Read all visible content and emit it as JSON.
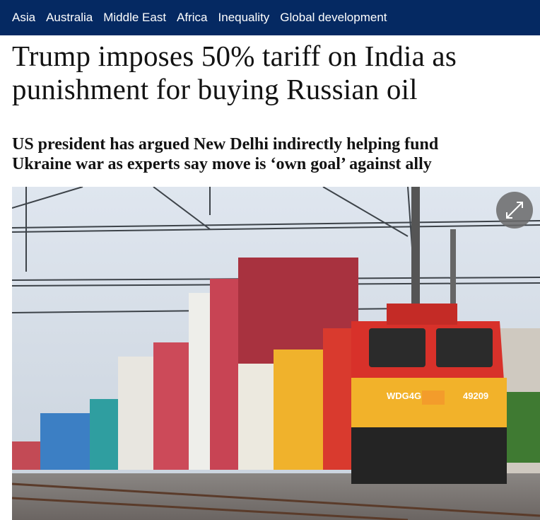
{
  "nav": {
    "items": [
      "Asia",
      "Australia",
      "Middle East",
      "Africa",
      "Inequality",
      "Global development"
    ]
  },
  "article": {
    "headline": "Trump imposes 50% tariff on India as punishment for buying Russian oil",
    "standfirst": "US president has argued New Delhi indirectly helping fund Ukraine war as experts say move is ‘own goal’ against ally",
    "image": {
      "locomotive_model": "WDG4G",
      "locomotive_number": "49209"
    }
  }
}
